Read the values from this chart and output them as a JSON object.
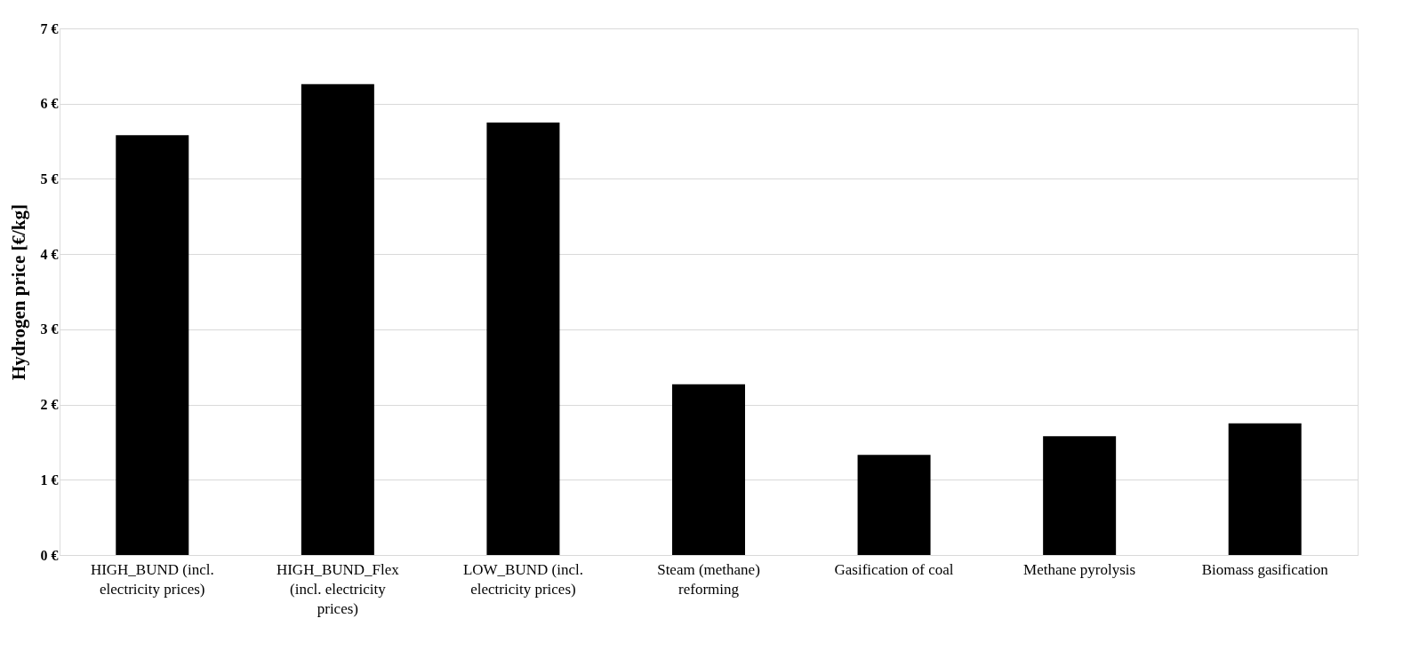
{
  "chart_data": {
    "type": "bar",
    "ylabel": "Hydrogen price [€/kg]",
    "categories": [
      "HIGH_BUND (incl. electricity prices)",
      "HIGH_BUND_Flex (incl. electricity prices)",
      "LOW_BUND (incl. electricity prices)",
      "Steam (methane) reforming",
      "Gasification of coal",
      "Methane pyrolysis",
      "Biomass gasification"
    ],
    "values": [
      5.58,
      6.26,
      5.75,
      2.27,
      1.33,
      1.58,
      1.75
    ],
    "color": "#000000",
    "ylim": [
      0,
      7
    ],
    "yticks": [
      {
        "value": 0,
        "label": "0 €"
      },
      {
        "value": 1,
        "label": "1 €"
      },
      {
        "value": 2,
        "label": "2 €"
      },
      {
        "value": 3,
        "label": "3 €"
      },
      {
        "value": 4,
        "label": "4 €"
      },
      {
        "value": 5,
        "label": "5 €"
      },
      {
        "value": 6,
        "label": "6 €"
      },
      {
        "value": 7,
        "label": "7 €"
      }
    ],
    "grid": "y"
  }
}
